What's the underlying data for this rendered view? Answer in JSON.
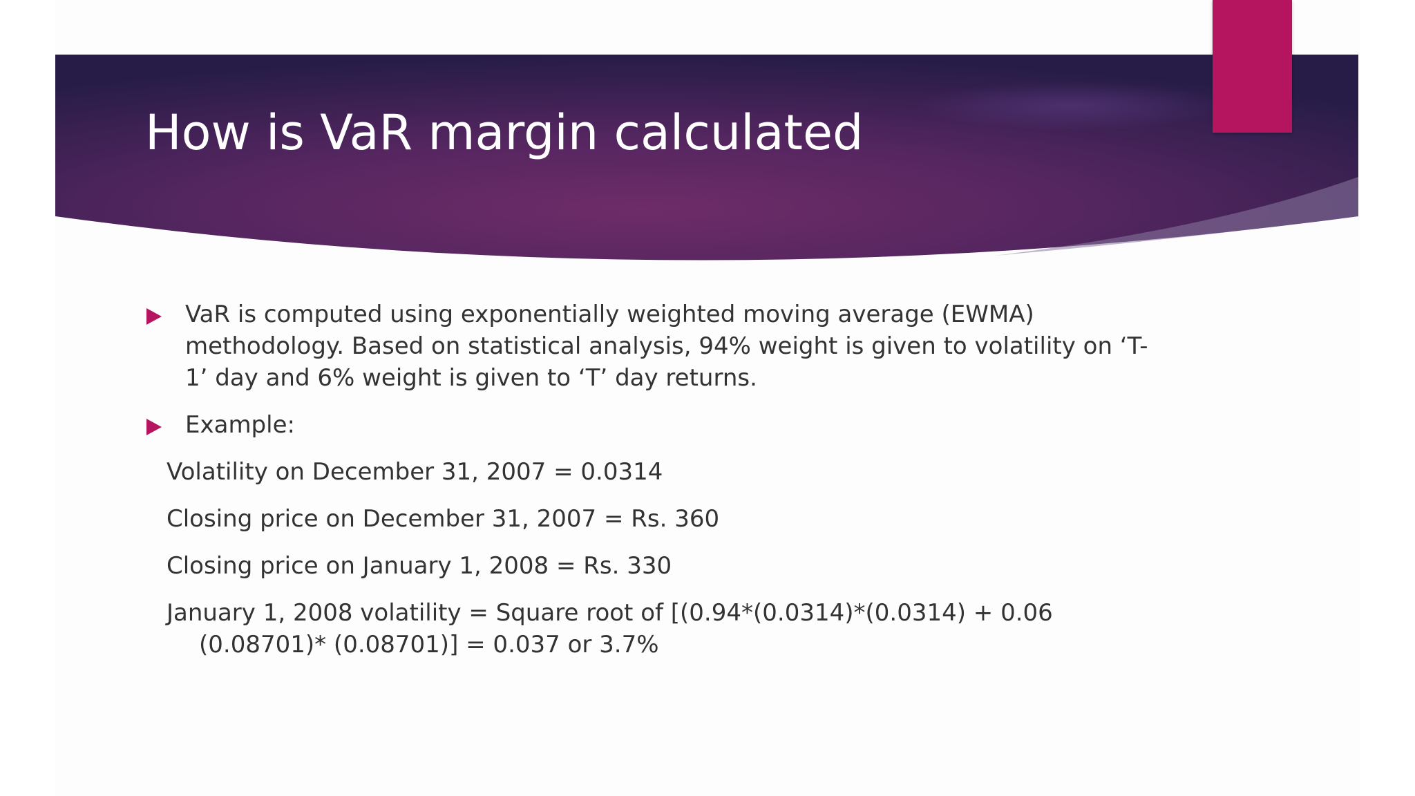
{
  "slide": {
    "title": "How is VaR margin calculated",
    "bullets": [
      "VaR is computed using exponentially weighted moving average (EWMA) methodology. Based on statistical analysis, 94% weight is given to volatility on ‘T-1’ day and 6% weight is given to ‘T’ day returns.",
      "Example:"
    ],
    "example_lines": [
      "Volatility on December 31, 2007 = 0.0314",
      "Closing price on December 31, 2007 = Rs. 360",
      "Closing price on January 1, 2008 = Rs. 330",
      "January 1, 2008 volatility = Square root of [(0.94*(0.0314)*(0.0314) + 0.06 (0.08701)* (0.08701)] = 0.037 or 3.7%"
    ],
    "bullet_icon": "triangle-right-icon"
  },
  "colors": {
    "accent": "#b5145f",
    "banner_dark": "#2a1d4a",
    "banner_mid": "#5e2a64",
    "text": "#333333",
    "title_text": "#ffffff"
  }
}
